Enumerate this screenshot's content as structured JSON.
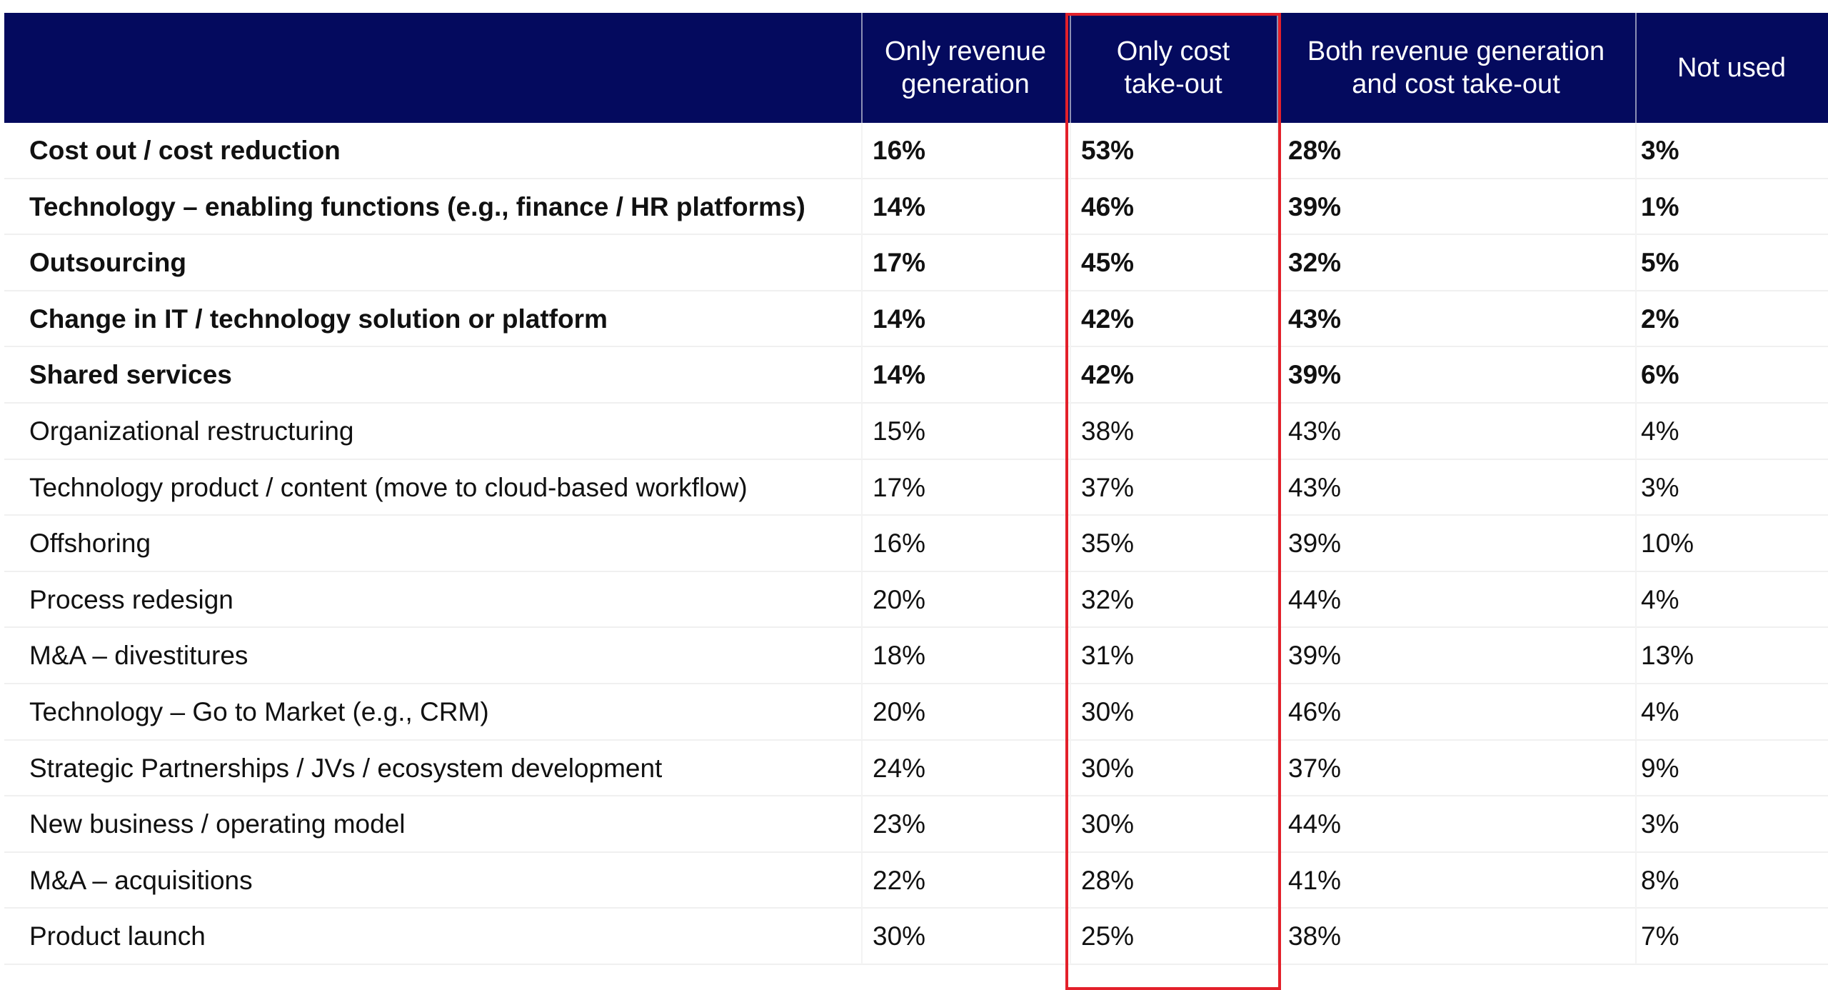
{
  "chart_data": {
    "type": "table",
    "columns": [
      "",
      "Only revenue\ngeneration",
      "Only cost\ntake-out",
      "Both revenue generation\nand cost take-out",
      "Not used"
    ],
    "highlighted_column_index": 2,
    "highlight_color": "#e3202a",
    "header_color": "#040a5e",
    "rows": [
      {
        "label": "Cost out / cost reduction",
        "values": [
          "16%",
          "53%",
          "28%",
          "3%"
        ],
        "bold": true
      },
      {
        "label": "Technology – enabling functions (e.g., finance / HR platforms)",
        "values": [
          "14%",
          "46%",
          "39%",
          "1%"
        ],
        "bold": true
      },
      {
        "label": "Outsourcing",
        "values": [
          "17%",
          "45%",
          "32%",
          "5%"
        ],
        "bold": true
      },
      {
        "label": "Change in IT / technology solution or platform",
        "values": [
          "14%",
          "42%",
          "43%",
          "2%"
        ],
        "bold": true
      },
      {
        "label": "Shared services",
        "values": [
          "14%",
          "42%",
          "39%",
          "6%"
        ],
        "bold": true
      },
      {
        "label": "Organizational restructuring",
        "values": [
          "15%",
          "38%",
          "43%",
          "4%"
        ],
        "bold": false
      },
      {
        "label": "Technology product / content (move to cloud-based workflow)",
        "values": [
          "17%",
          "37%",
          "43%",
          "3%"
        ],
        "bold": false
      },
      {
        "label": "Offshoring",
        "values": [
          "16%",
          "35%",
          "39%",
          "10%"
        ],
        "bold": false
      },
      {
        "label": "Process redesign",
        "values": [
          "20%",
          "32%",
          "44%",
          "4%"
        ],
        "bold": false
      },
      {
        "label": "M&A – divestitures",
        "values": [
          "18%",
          "31%",
          "39%",
          "13%"
        ],
        "bold": false
      },
      {
        "label": "Technology – Go to Market (e.g., CRM)",
        "values": [
          "20%",
          "30%",
          "46%",
          "4%"
        ],
        "bold": false
      },
      {
        "label": "Strategic Partnerships / JVs / ecosystem development",
        "values": [
          "24%",
          "30%",
          "37%",
          "9%"
        ],
        "bold": false
      },
      {
        "label": "New business / operating model",
        "values": [
          "23%",
          "30%",
          "44%",
          "3%"
        ],
        "bold": false
      },
      {
        "label": "M&A – acquisitions",
        "values": [
          "22%",
          "28%",
          "41%",
          "8%"
        ],
        "bold": false
      },
      {
        "label": "Product launch",
        "values": [
          "30%",
          "25%",
          "38%",
          "7%"
        ],
        "bold": false
      }
    ]
  }
}
